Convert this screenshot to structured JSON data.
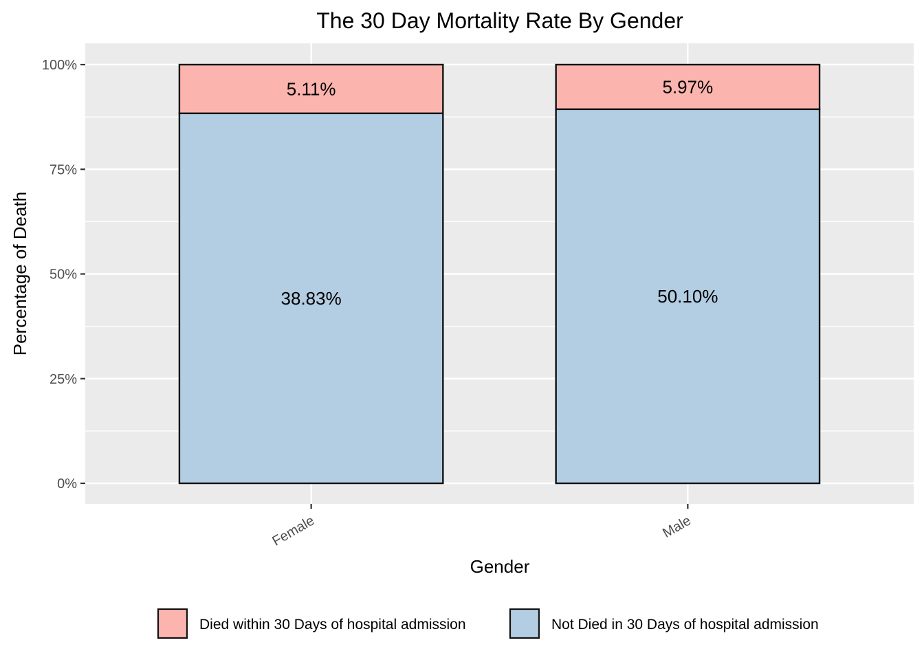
{
  "chart_data": {
    "type": "bar",
    "stacked": "fill",
    "title": "The 30 Day Mortality Rate By Gender",
    "xlabel": "Gender",
    "ylabel": "Percentage of Death",
    "categories": [
      "Female",
      "Male"
    ],
    "ylim": [
      0,
      100
    ],
    "yticks": [
      "0%",
      "25%",
      "50%",
      "75%",
      "100%"
    ],
    "ytick_values": [
      0,
      25,
      50,
      75,
      100
    ],
    "grid": true,
    "legend_position": "bottom",
    "series": [
      {
        "name": "Not Died in 30 Days of hospital admission",
        "color": "#b3cde3",
        "values": [
          38.83,
          50.1
        ],
        "labels": [
          "38.83%",
          "50.10%"
        ]
      },
      {
        "name": "Died within 30 Days of hospital admission",
        "color": "#fbb4ae",
        "values": [
          5.11,
          5.97
        ],
        "labels": [
          "5.11%",
          "5.97%"
        ]
      }
    ],
    "legend_order": [
      1,
      0
    ]
  }
}
